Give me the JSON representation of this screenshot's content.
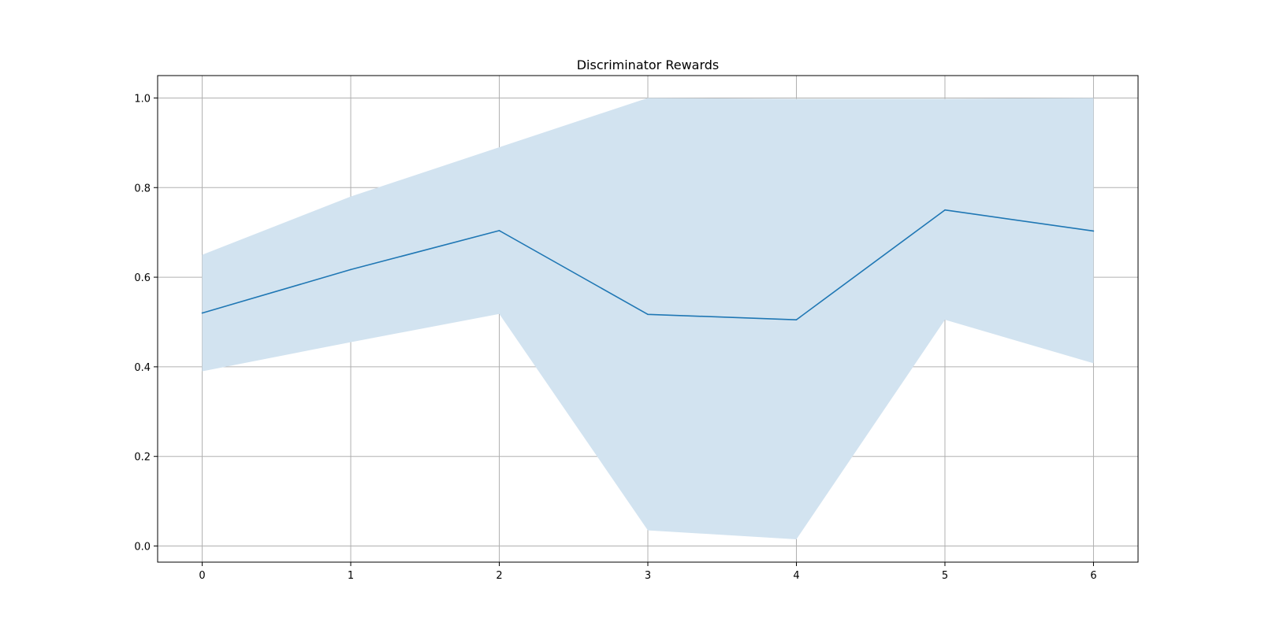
{
  "chart_data": {
    "type": "line",
    "title": "Discriminator Rewards",
    "xlabel": "",
    "ylabel": "",
    "x": [
      0,
      1,
      2,
      3,
      4,
      5,
      6
    ],
    "series": [
      {
        "values": [
          0.52,
          0.617,
          0.704,
          0.517,
          0.505,
          0.75,
          0.703
        ],
        "band_lower": [
          0.39,
          0.455,
          0.518,
          0.035,
          0.015,
          0.505,
          0.408
        ],
        "band_upper": [
          0.65,
          0.78,
          0.89,
          1.0,
          0.998,
          0.998,
          1.0
        ],
        "line_color": "#1f77b4",
        "band_color": "#d2e3f0"
      }
    ],
    "xlim": [
      -0.3,
      6.3
    ],
    "ylim": [
      -0.036,
      1.05
    ],
    "x_ticks": [
      "0",
      "1",
      "2",
      "3",
      "4",
      "5",
      "6"
    ],
    "y_ticks": [
      "0.0",
      "0.2",
      "0.4",
      "0.6",
      "0.8",
      "1.0"
    ],
    "grid": true,
    "legend": "none"
  }
}
